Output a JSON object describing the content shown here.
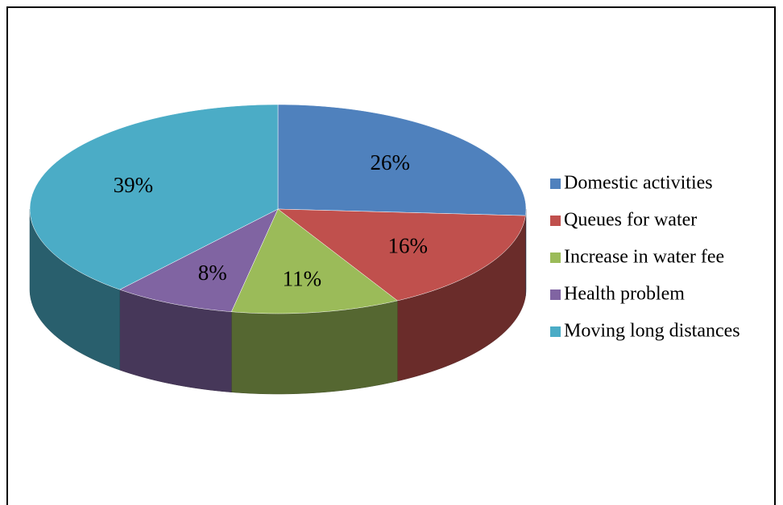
{
  "chart_data": {
    "type": "pie",
    "categories": [
      "Domestic activities",
      "Queues for water",
      "Increase in water fee",
      "Health problem",
      "Moving long distances"
    ],
    "values": [
      26,
      16,
      11,
      8,
      39
    ],
    "value_labels": [
      "26%",
      "16%",
      "11%",
      "8%",
      "39%"
    ],
    "colors": [
      "#4f81bd",
      "#c0504d",
      "#9bbb59",
      "#8064a2",
      "#4bacc6"
    ],
    "legend": "right"
  }
}
